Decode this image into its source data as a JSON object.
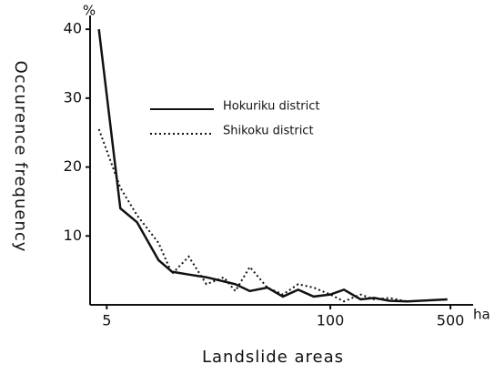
{
  "chart_data": {
    "type": "line",
    "x_label": "Landslide areas",
    "y_label": "Occurence frequency",
    "x_unit": "ha",
    "y_unit": "%",
    "x_scale": "log",
    "xlim": [
      4,
      600
    ],
    "xticks": [
      5,
      100,
      500
    ],
    "ylim": [
      0,
      42
    ],
    "yticks": [
      10,
      20,
      30,
      40
    ],
    "grid": false,
    "x": [
      4.5,
      6,
      7.5,
      10,
      12,
      15,
      19,
      24,
      28,
      34,
      43,
      53,
      65,
      80,
      100,
      120,
      150,
      180,
      220,
      280,
      480
    ],
    "series": [
      {
        "name": "Hokuriku district",
        "color": "#111111",
        "dash": "solid",
        "values": [
          40,
          14,
          12,
          6.5,
          4.8,
          4.4,
          4,
          3.4,
          3,
          2,
          2.5,
          1.2,
          2.2,
          1.2,
          1.5,
          2.2,
          0.8,
          1,
          0.6,
          0.5,
          0.8
        ]
      },
      {
        "name": "Shikoku district",
        "color": "#111111",
        "dash": "dotted",
        "values": [
          25.5,
          17,
          13,
          9,
          4.5,
          7,
          3,
          4,
          2,
          5.5,
          2.5,
          1.5,
          3,
          2.5,
          1.5,
          0.5,
          1.5,
          0.8,
          1,
          0.5,
          0.8
        ]
      }
    ]
  }
}
